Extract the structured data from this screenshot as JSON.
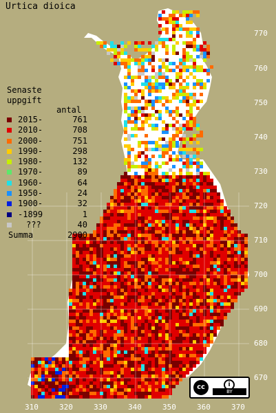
{
  "title": "Urtica dioica",
  "legend": {
    "heading_line1": "Senaste",
    "heading_line2": "uppgift",
    "count_heading": "antal",
    "items": [
      {
        "label": "2015-",
        "count": "761",
        "color": "#7a0000"
      },
      {
        "label": "2010-",
        "count": "708",
        "color": "#e00000"
      },
      {
        "label": "2000-",
        "count": "751",
        "color": "#ff6a00"
      },
      {
        "label": "1990-",
        "count": "298",
        "color": "#ffcc00"
      },
      {
        "label": "1980-",
        "count": "132",
        "color": "#c8ee00"
      },
      {
        "label": "1970-",
        "count": "89",
        "color": "#5de86a"
      },
      {
        "label": "1960-",
        "count": "64",
        "color": "#20e0e8"
      },
      {
        "label": "1950-",
        "count": "24",
        "color": "#1a90ff"
      },
      {
        "label": "1900-",
        "count": "32",
        "color": "#0020e0"
      },
      {
        "label": "-1899",
        "count": "1",
        "color": "#000080"
      },
      {
        "label": "???",
        "count": "40",
        "color": "#c8c8c8"
      }
    ],
    "total_label": "Summa",
    "total_count": "2900"
  },
  "axes": {
    "y_labels": [
      "770",
      "760",
      "750",
      "740",
      "730",
      "720",
      "710",
      "700",
      "690",
      "680",
      "670"
    ],
    "x_labels": [
      "310",
      "320",
      "330",
      "340",
      "350",
      "360",
      "370"
    ]
  },
  "license": {
    "cc_text": "cc",
    "by_text": "BY",
    "person_icon": "person-icon"
  },
  "colors": {
    "background": "#b5ad7f",
    "land": "#ffffff",
    "grid": "#ffffff"
  }
}
